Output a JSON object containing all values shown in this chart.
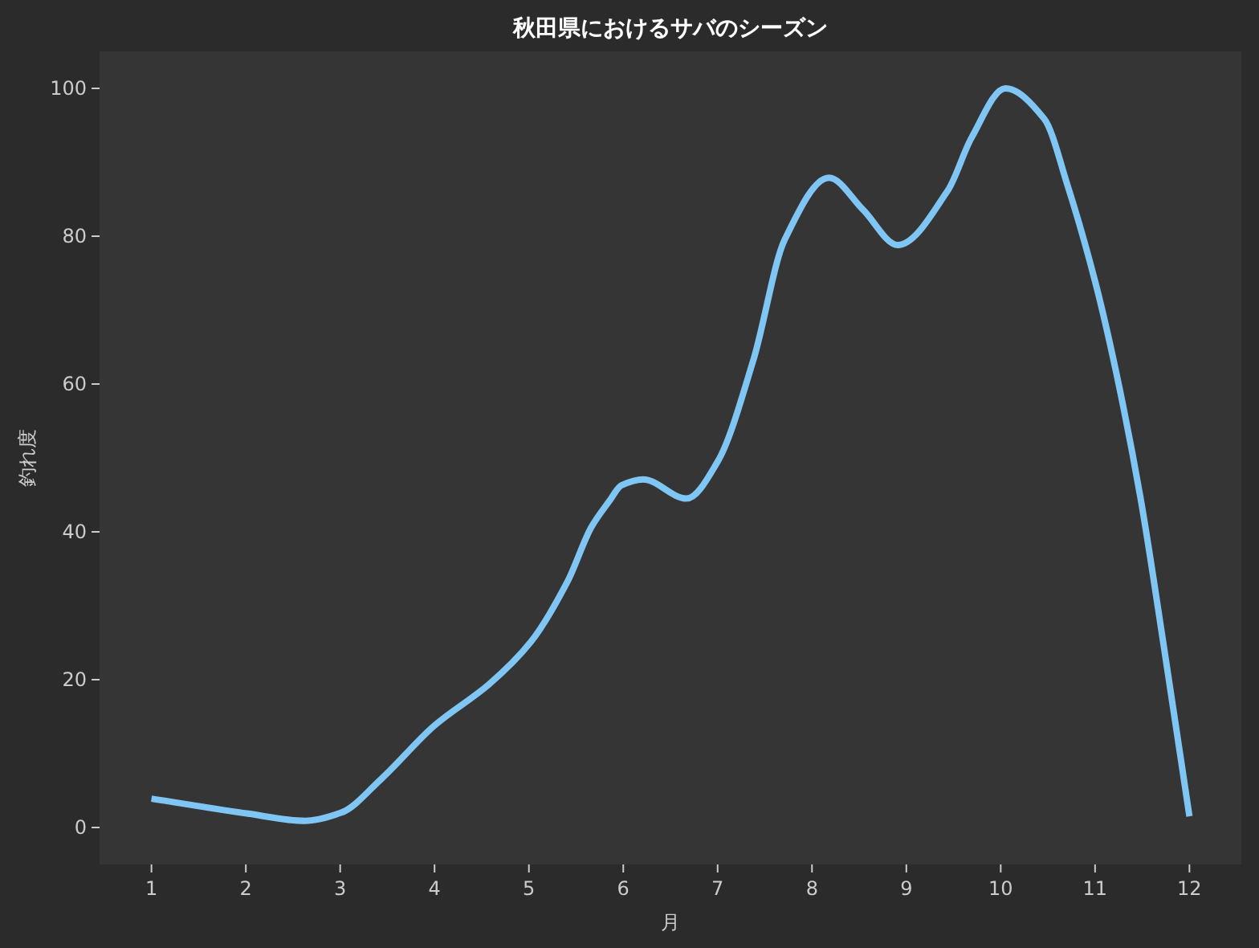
{
  "chart_data": {
    "type": "line",
    "title": "秋田県におけるサバのシーズン",
    "xlabel": "月",
    "ylabel": "釣れ度",
    "x": [
      1,
      2.01,
      2.63,
      3.01,
      3.43,
      4.0,
      4.58,
      5.02,
      5.41,
      5.66,
      5.86,
      5.98,
      6.21,
      6.67,
      7.0,
      7.38,
      7.71,
      8.18,
      8.54,
      8.91,
      9.44,
      9.69,
      10.05,
      10.46,
      10.71,
      11.0,
      11.22,
      11.48,
      11.73,
      12
    ],
    "series": [
      {
        "color": "#7fc6f5",
        "values": [
          3.9,
          1.9,
          0.9,
          2.0,
          6.5,
          13.8,
          19.4,
          25.1,
          33.3,
          40.6,
          44.3,
          46.3,
          47.1,
          44.5,
          49.5,
          63.3,
          79.5,
          87.9,
          83.6,
          78.8,
          86.2,
          93.3,
          100,
          95.9,
          86.8,
          73.9,
          61.8,
          44.7,
          24.4,
          1.5
        ]
      }
    ],
    "xlim": [
      0.45,
      12.55
    ],
    "ylim": [
      -5,
      105
    ],
    "xticks": [
      1,
      2,
      3,
      4,
      5,
      6,
      7,
      8,
      9,
      10,
      11,
      12
    ],
    "yticks": [
      0,
      20,
      40,
      60,
      80,
      100
    ],
    "grid": false,
    "marker": "none",
    "line_style": "solid"
  }
}
